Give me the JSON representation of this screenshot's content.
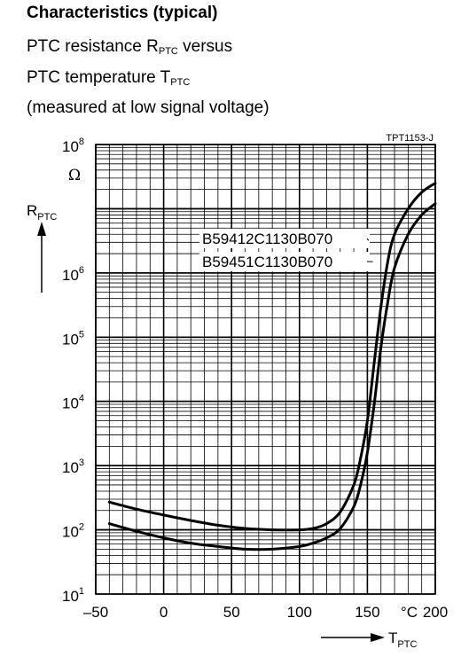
{
  "heading": "Characteristics (typical)",
  "description": {
    "line1_text": "PTC resistance R",
    "line1_sub": "PTC",
    "line1_tail": " versus",
    "line2_text": "PTC temperature T",
    "line2_sub": "PTC",
    "line3": "(measured at low signal voltage)"
  },
  "chart_data": {
    "type": "line",
    "figure_id": "TPT1153-J",
    "xlabel": {
      "main": "T",
      "sub": "PTC"
    },
    "x_unit": "°C",
    "ylabel": {
      "main": "R",
      "sub": "PTC"
    },
    "y_unit": "Ω",
    "y_scale": "log",
    "xlim": [
      -50,
      200
    ],
    "ylim": [
      10,
      100000000
    ],
    "x_ticks": [
      {
        "value": -50,
        "label": "–50"
      },
      {
        "value": 0,
        "label": "0"
      },
      {
        "value": 50,
        "label": "50"
      },
      {
        "value": 100,
        "label": "100"
      },
      {
        "value": 150,
        "label": "150"
      },
      {
        "value": 200,
        "label": "200"
      }
    ],
    "y_ticks": [
      {
        "value": 10,
        "base": "10",
        "exp": "1"
      },
      {
        "value": 100,
        "base": "10",
        "exp": "2"
      },
      {
        "value": 1000,
        "base": "10",
        "exp": "3"
      },
      {
        "value": 10000,
        "base": "10",
        "exp": "4"
      },
      {
        "value": 100000,
        "base": "10",
        "exp": "5"
      },
      {
        "value": 1000000,
        "base": "10",
        "exp": "6"
      },
      {
        "value": 100000000,
        "base": "10",
        "exp": "8"
      }
    ],
    "grid": true,
    "series": [
      {
        "name": "B59412C1130B070",
        "x": [
          -40,
          -20,
          0,
          20,
          40,
          60,
          80,
          100,
          110,
          120,
          130,
          140,
          145,
          150,
          155,
          160,
          165,
          170,
          180,
          190,
          200
        ],
        "y": [
          270,
          210,
          170,
          140,
          118,
          105,
          100,
          100,
          105,
          125,
          190,
          500,
          1300,
          5000,
          40000,
          300000,
          1500000,
          4000000,
          10000000,
          18000000,
          25000000
        ]
      },
      {
        "name": "B59451C1130B070",
        "x": [
          -40,
          -20,
          0,
          20,
          40,
          60,
          80,
          100,
          110,
          120,
          130,
          140,
          145,
          150,
          155,
          160,
          165,
          170,
          180,
          190,
          200
        ],
        "y": [
          125,
          95,
          75,
          62,
          55,
          50,
          50,
          55,
          62,
          75,
          105,
          230,
          500,
          1600,
          9000,
          70000,
          350000,
          1200000,
          4000000,
          8000000,
          12000000
        ]
      }
    ]
  }
}
